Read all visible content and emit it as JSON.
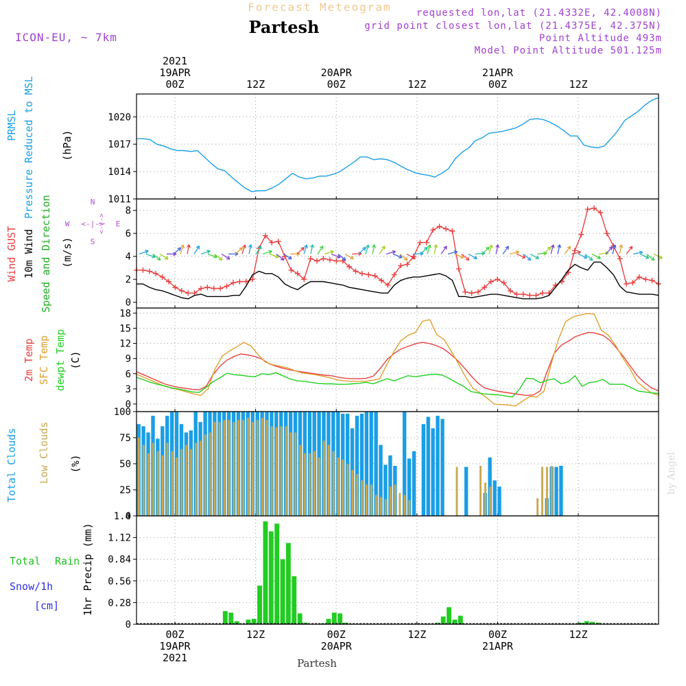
{
  "header": {
    "top_title": "Forecast Meteogram",
    "station": "Partesh",
    "model": "ICON-EU, ~ 7km",
    "requested": "requested lon,lat (21.4332E, 42.4008N)",
    "grid_point": "grid point closest lon,lat (21.4375E, 42.375N)",
    "point_alt": "Point Altitude 493m",
    "model_alt": "Model Point Altitude 501.125m",
    "footer_station": "Partesh",
    "watermark": "by Angel"
  },
  "colors": {
    "pressure": "#1a9ee6",
    "gust": "#e84040",
    "wind": "#000000",
    "dir_label": "#20b020",
    "temp2m": "#e84040",
    "sfc": "#e0a030",
    "dew": "#20d020",
    "total_cloud": "#1a9ee6",
    "low_cloud": "#c8a850",
    "rain": "#22cc22",
    "snow": "#3030e0",
    "compass": "#b050d0"
  },
  "time_axis": {
    "top_labels": [
      {
        "h": 0,
        "lines": [
          "2021",
          "19APR",
          "00Z"
        ]
      },
      {
        "h": 12,
        "lines": [
          "12Z"
        ]
      },
      {
        "h": 24,
        "lines": [
          "20APR",
          "00Z"
        ]
      },
      {
        "h": 36,
        "lines": [
          "12Z"
        ]
      },
      {
        "h": 48,
        "lines": [
          "21APR",
          "00Z"
        ]
      },
      {
        "h": 60,
        "lines": [
          "12Z"
        ]
      }
    ],
    "bottom_labels": [
      {
        "h": 0,
        "lines": [
          "00Z",
          "19APR",
          "2021"
        ]
      },
      {
        "h": 12,
        "lines": [
          "12Z"
        ]
      },
      {
        "h": 24,
        "lines": [
          "00Z",
          "20APR"
        ]
      },
      {
        "h": 36,
        "lines": [
          "12Z"
        ]
      },
      {
        "h": 48,
        "lines": [
          "00Z",
          "21APR"
        ]
      },
      {
        "h": 60,
        "lines": [
          "12Z"
        ]
      }
    ]
  },
  "chart_data": [
    {
      "type": "line",
      "title": "PRMSL Pressure Reduced to MSL",
      "ylabel_lines": [
        "PRMSL",
        "Pressure Reduced to MSL"
      ],
      "unit": "(hPa)",
      "ylim": [
        1011,
        1022.5
      ],
      "yticks": [
        1011,
        1014,
        1017,
        1020
      ],
      "series": [
        {
          "name": "PRMSL",
          "color": "#1a9ee6",
          "values": [
            1017.6,
            1017.6,
            1017.5,
            1017.0,
            1016.8,
            1016.5,
            1016.3,
            1016.3,
            1016.2,
            1016.3,
            1015.6,
            1014.9,
            1014.3,
            1014.1,
            1013.4,
            1012.8,
            1012.2,
            1011.8,
            1011.9,
            1011.9,
            1012.2,
            1012.6,
            1013.2,
            1013.8,
            1013.4,
            1013.2,
            1013.3,
            1013.5,
            1013.5,
            1013.7,
            1014.0,
            1014.5,
            1015.0,
            1015.6,
            1015.6,
            1015.3,
            1015.4,
            1015.3,
            1015.0,
            1014.6,
            1014.2,
            1013.9,
            1013.7,
            1013.6,
            1013.4,
            1013.8,
            1014.3,
            1015.4,
            1016.1,
            1016.6,
            1017.4,
            1017.7,
            1018.2,
            1018.3,
            1018.4,
            1018.6,
            1018.8,
            1019.2,
            1019.7,
            1019.8,
            1019.7,
            1019.4,
            1019.0,
            1018.5,
            1017.9,
            1017.9,
            1016.9,
            1016.7,
            1016.6,
            1016.8,
            1017.6,
            1018.5,
            1019.6,
            1020.1,
            1020.6,
            1021.3,
            1021.8,
            1022.1
          ]
        }
      ]
    },
    {
      "type": "line",
      "title": "Wind GUST / 10m Wind / Speed and Direction",
      "ylabel_lines": [
        "Wind GUST",
        "10m Wind",
        "Speed and Direction"
      ],
      "unit": "(m/s)",
      "ylim": [
        -0.5,
        9
      ],
      "yticks": [
        0,
        2,
        4,
        6,
        8
      ],
      "compass": {
        "n": "N",
        "s": "S",
        "w": "W",
        "e": "E",
        "arrow": "<-|->"
      },
      "series": [
        {
          "name": "Wind GUST",
          "color": "#e84040",
          "marker": "+",
          "values": [
            2.8,
            2.8,
            2.7,
            2.5,
            2.2,
            1.8,
            1.3,
            1.0,
            0.8,
            0.8,
            1.2,
            1.3,
            1.2,
            1.2,
            1.4,
            1.7,
            1.8,
            1.8,
            2.0,
            4.7,
            5.8,
            5.2,
            5.3,
            4.0,
            2.8,
            2.5,
            2.0,
            3.8,
            3.6,
            3.8,
            3.7,
            3.6,
            3.6,
            3.1,
            2.7,
            2.5,
            2.4,
            2.3,
            1.9,
            1.5,
            2.4,
            3.2,
            3.3,
            4.0,
            5.2,
            5.2,
            6.3,
            6.6,
            6.4,
            6.2,
            2.9,
            0.9,
            0.8,
            0.9,
            1.3,
            1.8,
            2.0,
            1.7,
            1.0,
            0.7,
            0.7,
            0.6,
            0.6,
            0.8,
            0.8,
            1.5,
            1.8,
            2.6,
            4.5,
            5.9,
            8.1,
            8.2,
            7.8,
            6.0,
            4.9,
            3.8,
            1.6,
            1.7,
            2.2,
            2.0,
            1.9,
            1.6
          ]
        },
        {
          "name": "10m Wind",
          "color": "#000000",
          "values": [
            1.6,
            1.6,
            1.3,
            1.1,
            1.0,
            0.8,
            0.6,
            0.4,
            0.3,
            0.6,
            0.7,
            0.5,
            0.5,
            0.5,
            0.5,
            0.6,
            0.6,
            1.4,
            2.4,
            2.7,
            2.5,
            2.5,
            2.2,
            1.6,
            1.3,
            1.1,
            1.5,
            1.8,
            1.8,
            1.8,
            1.7,
            1.6,
            1.5,
            1.3,
            1.2,
            1.1,
            1.0,
            0.9,
            0.8,
            0.8,
            1.5,
            1.9,
            2.1,
            2.2,
            2.2,
            2.3,
            2.4,
            2.5,
            2.3,
            1.9,
            0.5,
            0.5,
            0.4,
            0.5,
            0.6,
            0.7,
            0.7,
            0.6,
            0.5,
            0.4,
            0.3,
            0.3,
            0.3,
            0.4,
            0.6,
            1.3,
            2.0,
            2.8,
            3.3,
            3.0,
            2.8,
            3.5,
            3.5,
            3.0,
            2.4,
            1.4,
            0.9,
            0.8,
            0.7,
            0.7,
            0.7,
            0.6
          ]
        }
      ]
    },
    {
      "type": "line",
      "title": "2m Temp / SFC Temp / dewpt Temp",
      "ylabel_lines": [
        "2m Temp",
        "SFC Temp",
        "dewpt Temp"
      ],
      "unit": "(C)",
      "ylim": [
        -1.5,
        19
      ],
      "yticks": [
        0,
        3,
        6,
        9,
        12,
        15,
        18
      ],
      "series": [
        {
          "name": "2m Temp",
          "color": "#e84040",
          "values": [
            6.4,
            5.8,
            5.2,
            4.6,
            4.0,
            3.6,
            3.3,
            3.1,
            2.9,
            2.8,
            3.5,
            5.8,
            7.5,
            8.7,
            9.4,
            9.9,
            9.7,
            9.4,
            8.9,
            8.0,
            7.5,
            7.1,
            6.8,
            6.5,
            6.3,
            6.1,
            5.9,
            5.7,
            5.6,
            5.3,
            5.1,
            5.0,
            5.0,
            5.1,
            5.5,
            7.0,
            8.8,
            10.0,
            10.9,
            11.4,
            11.9,
            12.2,
            12.0,
            11.6,
            11.0,
            10.0,
            8.8,
            7.3,
            5.7,
            4.2,
            3.2,
            2.8,
            2.5,
            2.3,
            2.1,
            1.9,
            1.7,
            1.8,
            2.6,
            6.5,
            10.0,
            11.6,
            12.4,
            13.3,
            13.8,
            14.2,
            14.0,
            13.6,
            12.6,
            11.0,
            9.3,
            7.4,
            5.5,
            4.2,
            3.2,
            2.6
          ]
        },
        {
          "name": "SFC Temp",
          "color": "#e0a030",
          "values": [
            5.9,
            5.3,
            4.7,
            4.1,
            3.5,
            3.1,
            2.8,
            2.4,
            2.0,
            1.7,
            3.0,
            7.0,
            9.5,
            10.5,
            11.3,
            12.2,
            11.5,
            9.8,
            8.3,
            7.8,
            7.5,
            7.2,
            6.7,
            6.2,
            6.0,
            5.8,
            5.5,
            5.2,
            4.8,
            4.6,
            4.5,
            4.5,
            4.5,
            4.7,
            5.0,
            7.8,
            10.4,
            12.6,
            13.6,
            14.2,
            16.4,
            16.7,
            13.7,
            12.8,
            10.5,
            8.0,
            5.4,
            3.2,
            2.2,
            1.2,
            0.0,
            -0.1,
            -0.2,
            -0.4,
            0.6,
            1.5,
            1.4,
            2.6,
            8.0,
            12.8,
            16.3,
            17.2,
            17.6,
            17.9,
            17.8,
            14.6,
            13.6,
            11.6,
            9.1,
            7.0,
            4.4,
            3.2,
            2.2,
            1.7
          ]
        },
        {
          "name": "dewpt Temp",
          "color": "#20d020",
          "values": [
            5.3,
            4.8,
            4.3,
            3.9,
            3.6,
            3.2,
            3.0,
            2.7,
            2.4,
            2.3,
            3.3,
            4.4,
            5.2,
            6.1,
            5.8,
            5.7,
            5.5,
            5.4,
            6.0,
            5.8,
            6.2,
            5.6,
            5.0,
            4.6,
            4.5,
            4.3,
            4.1,
            4.0,
            4.0,
            3.9,
            3.9,
            4.0,
            4.1,
            4.3,
            4.0,
            4.5,
            5.0,
            4.6,
            5.1,
            5.6,
            5.4,
            5.6,
            5.8,
            5.9,
            5.7,
            5.0,
            4.2,
            3.5,
            2.5,
            2.2,
            2.0,
            1.9,
            1.8,
            1.6,
            1.4,
            2.9,
            5.1,
            5.0,
            4.2,
            4.7,
            5.0,
            4.0,
            4.4,
            5.6,
            3.5,
            4.2,
            4.4,
            4.9,
            3.9,
            3.9,
            3.9,
            3.3,
            2.6,
            2.4,
            2.2,
            2.1
          ]
        }
      ]
    },
    {
      "type": "bar",
      "title": "Total Clouds / Low Clouds",
      "ylabel_lines": [
        "Total Clouds",
        "Low Clouds"
      ],
      "unit": "(%)",
      "ylim": [
        0,
        100
      ],
      "yticks": [
        0,
        25,
        50,
        75,
        100
      ],
      "series": [
        {
          "name": "Total Clouds",
          "color": "#1a9ee6",
          "values": [
            88,
            86,
            80,
            96,
            74,
            86,
            96,
            100,
            100,
            88,
            80,
            82,
            100,
            90,
            100,
            100,
            100,
            100,
            100,
            100,
            100,
            100,
            100,
            100,
            100,
            100,
            100,
            100,
            100,
            100,
            100,
            100,
            100,
            100,
            100,
            100,
            100,
            100,
            100,
            100,
            100,
            100,
            100,
            98,
            98,
            84,
            96,
            98,
            100,
            100,
            100,
            68,
            49,
            58,
            48,
            0,
            100,
            55,
            62,
            0,
            88,
            95,
            84,
            96,
            93,
            0,
            0,
            0,
            0,
            47,
            0,
            0,
            0,
            22,
            56,
            34,
            28,
            0,
            0,
            0,
            0,
            0,
            0,
            0,
            0,
            0,
            17,
            47,
            47,
            48,
            0,
            0,
            0,
            0,
            0,
            0,
            0,
            0,
            0,
            0,
            0,
            0,
            0,
            0,
            0,
            0,
            0,
            0,
            0,
            0
          ]
        },
        {
          "name": "Low Clouds",
          "color": "#c8a850",
          "values": [
            75,
            68,
            60,
            70,
            62,
            58,
            70,
            62,
            56,
            64,
            68,
            64,
            70,
            72,
            78,
            80,
            90,
            90,
            92,
            92,
            90,
            92,
            92,
            94,
            90,
            92,
            94,
            92,
            86,
            85,
            86,
            86,
            80,
            80,
            68,
            60,
            60,
            62,
            56,
            72,
            68,
            62,
            56,
            54,
            50,
            44,
            40,
            34,
            30,
            30,
            20,
            18,
            16,
            28,
            30,
            22,
            20,
            15,
            0,
            0,
            0,
            0,
            0,
            0,
            0,
            0,
            0,
            47,
            0,
            0,
            0,
            0,
            48,
            32,
            28,
            0,
            0,
            0,
            0,
            0,
            0,
            0,
            0,
            0,
            17,
            47,
            47,
            48,
            0,
            0,
            0,
            0,
            0,
            0,
            0,
            0,
            0,
            0,
            0,
            0,
            0,
            0,
            0,
            0,
            0,
            0,
            0,
            0,
            0
          ]
        }
      ]
    },
    {
      "type": "bar",
      "title": "1hr Precip (mm)",
      "ylabel_lines": [
        "1hr Precip (mm)"
      ],
      "side_labels": {
        "total": "Total",
        "rain": "Rain",
        "snow": "Snow/1h",
        "cm": "[cm]"
      },
      "ylim": [
        0,
        1.4
      ],
      "yticks": [
        0,
        0.28,
        0.56,
        0.84,
        1.12,
        1.4
      ],
      "series": [
        {
          "name": "Total Rain",
          "color": "#22cc22",
          "values": [
            0,
            0,
            0,
            0,
            0,
            0.01,
            0,
            0,
            0,
            0,
            0,
            0,
            0,
            0,
            0,
            0.17,
            0.15,
            0.04,
            0,
            0.06,
            0.07,
            0.5,
            1.33,
            1.2,
            1.3,
            0.84,
            1.05,
            0.62,
            0.14,
            0.02,
            0,
            0,
            0.01,
            0.07,
            0.15,
            0.14,
            0.02,
            0,
            0,
            0,
            0,
            0,
            0,
            0,
            0,
            0,
            0,
            0,
            0,
            0,
            0,
            0,
            0.02,
            0.1,
            0.22,
            0.06,
            0.11,
            0,
            0,
            0,
            0,
            0,
            0,
            0,
            0,
            0,
            0,
            0,
            0,
            0,
            0,
            0,
            0,
            0,
            0,
            0,
            0,
            0.02,
            0.04,
            0.03,
            0.02,
            0,
            0,
            0,
            0,
            0,
            0,
            0,
            0,
            0,
            0
          ]
        }
      ]
    }
  ]
}
